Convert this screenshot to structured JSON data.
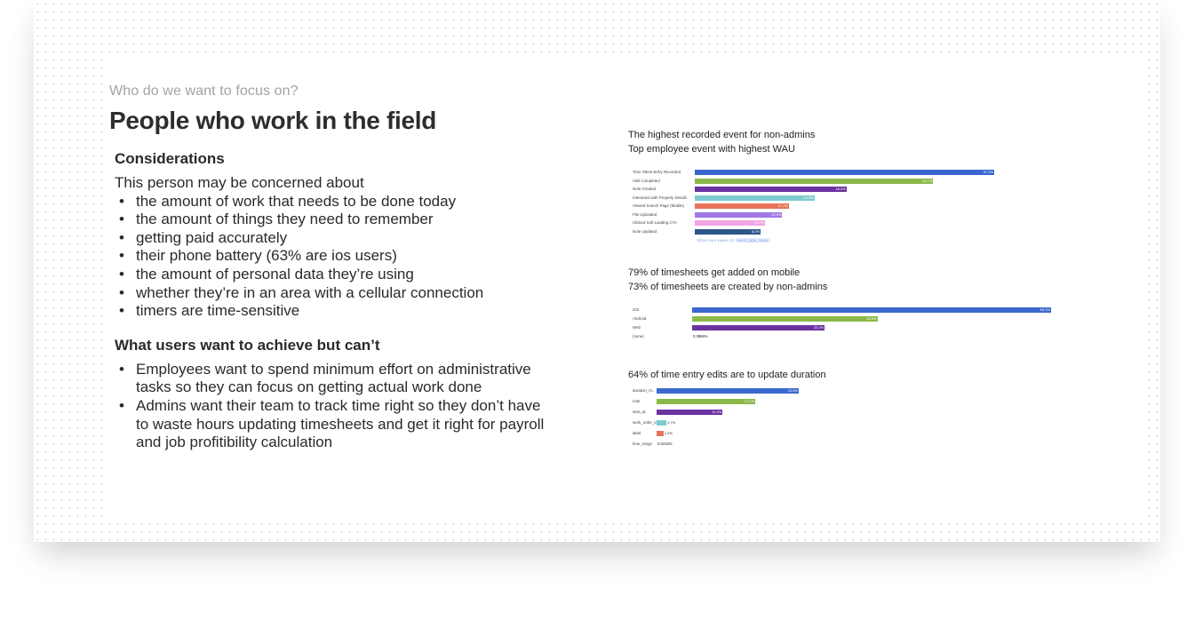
{
  "slide": {
    "kicker": "Who do we want to focus on?",
    "title": "People who work in the field",
    "considerations_heading": "Considerations",
    "considerations_intro": "This person may be concerned about",
    "considerations": [
      "the amount of work that needs to be done today",
      "the amount of things they need to remember",
      "getting paid accurately",
      "their phone battery (63% are ios users)",
      "the amount of personal data they’re using",
      "whether they’re in an area with a cellular connection",
      "timers are time-sensitive"
    ],
    "wants_heading": "What users want to achieve but can’t",
    "wants": [
      "Employees want to spend minimum effort on administrative tasks so they can focus on getting actual work done",
      "Admins want their team to track time right so they don’t have to waste hours updating timesheets and get it right for payroll and job profitibility calculation"
    ]
  },
  "charts": {
    "c1": {
      "line1": "The highest recorded event for non-admins",
      "line2": "Top employee event with highest WAU"
    },
    "c2": {
      "line1": "79% of timesheets get added on mobile",
      "line2": "73% of timesheets are created by non-admins"
    },
    "c3": {
      "line1": "64% of time entry edits are to update duration"
    }
  },
  "chart_data": [
    {
      "type": "bar",
      "orientation": "horizontal",
      "categories": [
        "Time Sheet Entry Recorded",
        "Visit Completed",
        "Note Created",
        "Interacted with Property Details",
        "Viewed Search Page (Mobile)",
        "File Uploaded",
        "Clicked Soft Landing CTA",
        "Note Updated"
      ],
      "values": [
        37.3,
        29.7,
        18.9,
        14.9,
        11.7,
        10.9,
        8.7,
        8.2
      ],
      "labels": [
        "37.3%",
        "29.7%",
        "18.9%",
        "14.9%",
        "11.7%",
        "10.9%",
        "8.7%",
        "8.2%"
      ],
      "colors": [
        "#3a68cf",
        "#8ab94a",
        "#6b32a0",
        "#7ecbcf",
        "#e8735a",
        "#a178e6",
        "#f3a4e2",
        "#2d5689"
      ],
      "footer": "Show more values for",
      "footer_chip": "event_type_name"
    },
    {
      "type": "bar",
      "orientation": "horizontal",
      "categories": [
        "iOS",
        "Android",
        "Web",
        "(none)"
      ],
      "values": [
        63.1,
        32.6,
        23.3,
        0.3866
      ],
      "labels": [
        "63.1%",
        "32.6%",
        "23.3%",
        "0.3866%"
      ],
      "colors": [
        "#3a68cf",
        "#8ab94a",
        "#6b32a0",
        "#cfcfcf"
      ]
    },
    {
      "type": "bar",
      "orientation": "horizontal",
      "categories": [
        "duration_m...",
        "note",
        "start_at",
        "work_order_id",
        "label",
        "time_range"
      ],
      "values": [
        24.6,
        17.1,
        11.4,
        1.7,
        1.2,
        0.0215
      ],
      "labels": [
        "24.6%",
        "17.1%",
        "11.4%",
        "1.7%",
        "1.2%",
        "0.0215%"
      ],
      "colors": [
        "#3a68cf",
        "#8ab94a",
        "#6b32a0",
        "#7ecbcf",
        "#e8735a",
        "#cfcfcf"
      ]
    }
  ]
}
